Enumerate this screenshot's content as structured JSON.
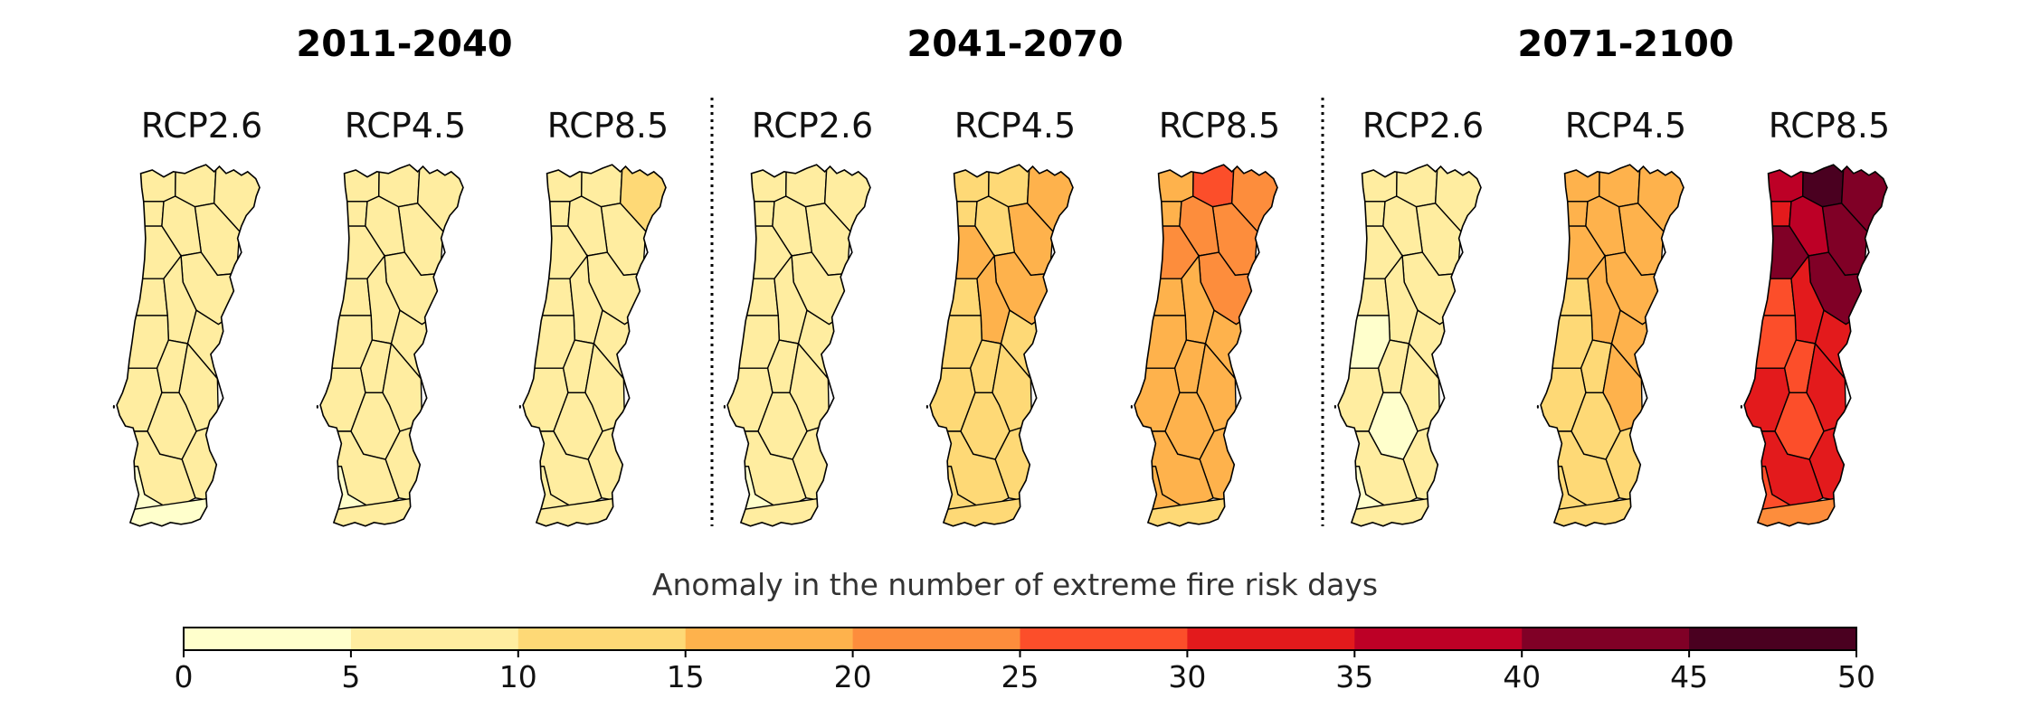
{
  "periods": [
    {
      "label": "2011-2040",
      "maps": [
        {
          "scenario": "RCP2.6",
          "values": [
            7,
            7,
            6,
            7,
            6,
            6,
            7,
            7,
            6,
            6,
            5,
            6,
            7,
            7,
            6,
            6,
            7,
            5,
            4,
            2
          ]
        },
        {
          "scenario": "RCP4.5",
          "values": [
            7,
            7,
            7,
            7,
            6,
            6,
            7,
            7,
            6,
            7,
            6,
            6,
            8,
            8,
            7,
            6,
            8,
            6,
            3,
            6
          ]
        },
        {
          "scenario": "RCP8.5",
          "values": [
            9,
            9,
            12,
            9,
            9,
            9,
            9,
            9,
            8,
            9,
            8,
            8,
            9,
            9,
            8,
            8,
            9,
            8,
            8,
            9
          ]
        }
      ]
    },
    {
      "label": "2041-2070",
      "maps": [
        {
          "scenario": "RCP2.6",
          "values": [
            7,
            7,
            7,
            7,
            6,
            6,
            7,
            7,
            6,
            6,
            5,
            6,
            8,
            8,
            7,
            6,
            8,
            6,
            3,
            7
          ]
        },
        {
          "scenario": "RCP4.5",
          "values": [
            13,
            13,
            17,
            17,
            14,
            14,
            15,
            16,
            13,
            15,
            12,
            13,
            14,
            14,
            12,
            11,
            14,
            13,
            11,
            12
          ]
        },
        {
          "scenario": "RCP8.5",
          "values": [
            18,
            27,
            22,
            22,
            17,
            20,
            20,
            22,
            17,
            19,
            17,
            17,
            17,
            18,
            17,
            16,
            19,
            17,
            16,
            13
          ]
        }
      ]
    },
    {
      "label": "2071-2100",
      "maps": [
        {
          "scenario": "RCP2.6",
          "values": [
            7,
            7,
            7,
            7,
            5,
            6,
            7,
            7,
            6,
            6,
            4,
            5,
            7,
            8,
            7,
            4,
            7,
            6,
            4,
            7
          ]
        },
        {
          "scenario": "RCP4.5",
          "values": [
            17,
            17,
            19,
            19,
            17,
            18,
            17,
            19,
            14,
            16,
            13,
            14,
            15,
            15,
            13,
            12,
            14,
            12,
            11,
            12
          ]
        },
        {
          "scenario": "RCP8.5",
          "values": [
            37,
            48,
            42,
            44,
            33,
            38,
            40,
            43,
            28,
            32,
            28,
            28,
            34,
            33,
            30,
            27,
            30,
            32,
            28,
            22
          ]
        }
      ]
    }
  ],
  "colorbar": {
    "title": "Anomaly in the number of extreme fire risk days",
    "ticks": [
      "0",
      "5",
      "10",
      "15",
      "20",
      "25",
      "30",
      "35",
      "40",
      "45",
      "50"
    ],
    "bins": [
      0,
      5,
      10,
      15,
      20,
      25,
      30,
      35,
      40,
      45,
      50
    ],
    "colors": [
      "#ffffcc",
      "#ffeda0",
      "#fed976",
      "#feb24c",
      "#fd8d3c",
      "#fc4e2a",
      "#e31a1c",
      "#bd0026",
      "#800026",
      "#4a0020"
    ]
  }
}
